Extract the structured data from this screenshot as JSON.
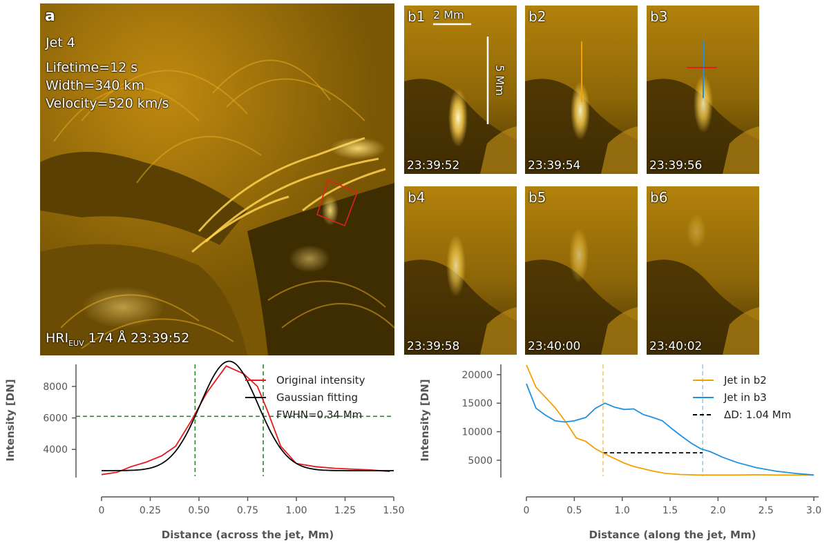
{
  "panel_a": {
    "letter": "a",
    "jet": "Jet 4",
    "lifetime": "Lifetime=12 s",
    "width": "Width=340 km",
    "velocity": "Velocity=520 km/s",
    "instrument": "HRI",
    "instrument_sub": "EUV",
    "wavelength_time": " 174 Å 23:39:52"
  },
  "subpanels": [
    {
      "id": "b1",
      "time": "23:39:52"
    },
    {
      "id": "b2",
      "time": "23:39:54"
    },
    {
      "id": "b3",
      "time": "23:39:56"
    },
    {
      "id": "b4",
      "time": "23:39:58"
    },
    {
      "id": "b5",
      "time": "23:40:00"
    },
    {
      "id": "b6",
      "time": "23:40:02"
    }
  ],
  "scale_bars": {
    "horizontal": "2 Mm",
    "vertical": "5 Mm"
  },
  "colors": {
    "sun_dark": "#3a2900",
    "sun_mid": "#b07f0b",
    "sun_bright": "#ffd866"
  },
  "chart_data": [
    {
      "type": "line",
      "title": "",
      "xlabel": "Distance (across the jet, Mm)",
      "ylabel": "Intensity [DN]",
      "xlim": [
        0,
        1.5
      ],
      "ylim": [
        2300,
        9400
      ],
      "xticks": [
        "0",
        "0.25",
        "0.50",
        "0.75",
        "1.00",
        "1.25",
        "1.50"
      ],
      "yticks": [
        "4000",
        "6000",
        "8000"
      ],
      "series": [
        {
          "name": "Original intensity",
          "color": "#e31a1c",
          "x": [
            0.0,
            0.08,
            0.15,
            0.23,
            0.31,
            0.38,
            0.46,
            0.54,
            0.64,
            0.73,
            0.8,
            0.85,
            0.92,
            1.0,
            1.1,
            1.2,
            1.28,
            1.38,
            1.48
          ],
          "y": [
            2400,
            2550,
            2900,
            3200,
            3600,
            4200,
            5800,
            7600,
            9300,
            8800,
            8000,
            6500,
            4200,
            3100,
            2900,
            2800,
            2750,
            2700,
            2600
          ]
        },
        {
          "name": "Gaussian fitting",
          "color": "#000000",
          "gaussian": {
            "amplitude": 6950,
            "center": 0.655,
            "sigma": 0.148,
            "offset": 2650
          }
        }
      ],
      "fwhm_label": "FWHN=0.34 Mm",
      "fwhm_x": [
        0.48,
        0.83
      ],
      "half_max_y": 6100
    },
    {
      "type": "line",
      "title": "",
      "xlabel": "Distance (along the jet, Mm)",
      "ylabel": "Intensity [DN]",
      "xlim": [
        0,
        3.05
      ],
      "ylim": [
        2200,
        21800
      ],
      "xticks": [
        "0",
        "0.5",
        "1.0",
        "1.5",
        "2.0",
        "2.5",
        "3.0"
      ],
      "yticks": [
        "5000",
        "10000",
        "15000",
        "20000"
      ],
      "series": [
        {
          "name": "Jet in b2",
          "color": "#f59f00",
          "x": [
            0.0,
            0.1,
            0.2,
            0.3,
            0.42,
            0.52,
            0.62,
            0.72,
            0.82,
            0.92,
            1.02,
            1.12,
            1.22,
            1.32,
            1.45,
            1.6,
            1.8,
            2.0,
            2.2,
            2.4,
            2.6,
            2.8,
            3.0
          ],
          "y": [
            21700,
            17800,
            16000,
            14200,
            11500,
            8900,
            8300,
            7000,
            6100,
            5300,
            4500,
            3900,
            3500,
            3100,
            2700,
            2500,
            2400,
            2400,
            2400,
            2450,
            2400,
            2400,
            2400
          ]
        },
        {
          "name": "Jet in b3",
          "color": "#1e90e0",
          "x": [
            0.0,
            0.1,
            0.2,
            0.3,
            0.4,
            0.5,
            0.62,
            0.72,
            0.82,
            0.92,
            1.02,
            1.12,
            1.22,
            1.32,
            1.42,
            1.52,
            1.62,
            1.72,
            1.82,
            1.92,
            2.05,
            2.2,
            2.4,
            2.6,
            2.8,
            3.0
          ],
          "y": [
            18400,
            14100,
            12900,
            11900,
            11700,
            11900,
            12500,
            14100,
            15000,
            14300,
            13900,
            14000,
            13000,
            12500,
            11900,
            10500,
            9200,
            8000,
            7000,
            6500,
            5500,
            4600,
            3700,
            3100,
            2700,
            2400
          ]
        }
      ],
      "delta_label": "ΔD: 1.04 Mm",
      "delta_x": [
        0.8,
        1.84
      ],
      "delta_y": 6300
    }
  ]
}
